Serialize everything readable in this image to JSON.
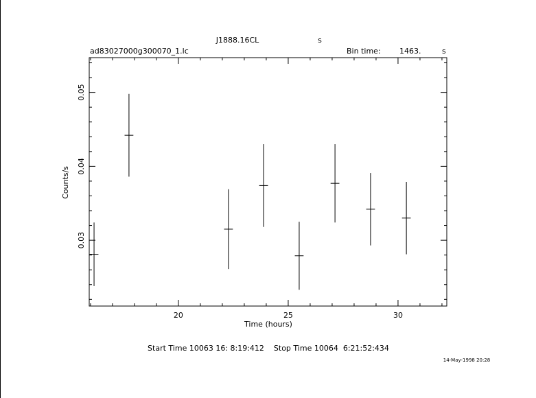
{
  "chart_data": {
    "type": "errorbar",
    "title": "J1888.16CL",
    "title_unit": "s",
    "file_name": "ad83027000g300070_1.lc",
    "bin_time_label": "Bin time:",
    "bin_time": "1463.",
    "bin_time_unit": "s",
    "x_label": "Time (hours)",
    "y_label": "Counts/s",
    "start_stop": "Start Time 10063 16: 8:19:412    Stop Time 10064  6:21:52:434",
    "date_stamp": "14-May-1998 20:28",
    "color": "#000000",
    "x": [
      16.16,
      17.75,
      22.28,
      23.88,
      25.5,
      27.13,
      28.75,
      30.38
    ],
    "values": [
      0.0281,
      0.0442,
      0.0315,
      0.0374,
      0.0279,
      0.0377,
      0.0342,
      0.033
    ],
    "yerr": [
      0.0043,
      0.0056,
      0.0054,
      0.0056,
      0.0046,
      0.0053,
      0.0049,
      0.0049
    ],
    "xerr": 0.2,
    "xlim": [
      15.94,
      32.22
    ],
    "ylim": [
      0.0211,
      0.0547
    ],
    "xticks": [
      20,
      25,
      30
    ],
    "yticks": [
      0.03,
      0.04,
      0.05
    ],
    "xminorticks": [
      16,
      17,
      18,
      19,
      21,
      22,
      23,
      24,
      26,
      27,
      28,
      29,
      31,
      32
    ],
    "yminorticks": [
      0.022,
      0.024,
      0.026,
      0.028,
      0.032,
      0.034,
      0.036,
      0.038,
      0.042,
      0.044,
      0.046,
      0.048,
      0.052,
      0.054
    ]
  }
}
